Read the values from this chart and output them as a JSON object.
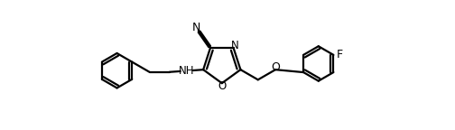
{
  "background_color": "#ffffff",
  "line_color": "#000000",
  "line_width": 1.6,
  "font_size": 8.5,
  "figsize": [
    5.04,
    1.44
  ],
  "dpi": 100,
  "xlim": [
    0,
    10.5
  ],
  "ylim": [
    -1.8,
    2.8
  ]
}
